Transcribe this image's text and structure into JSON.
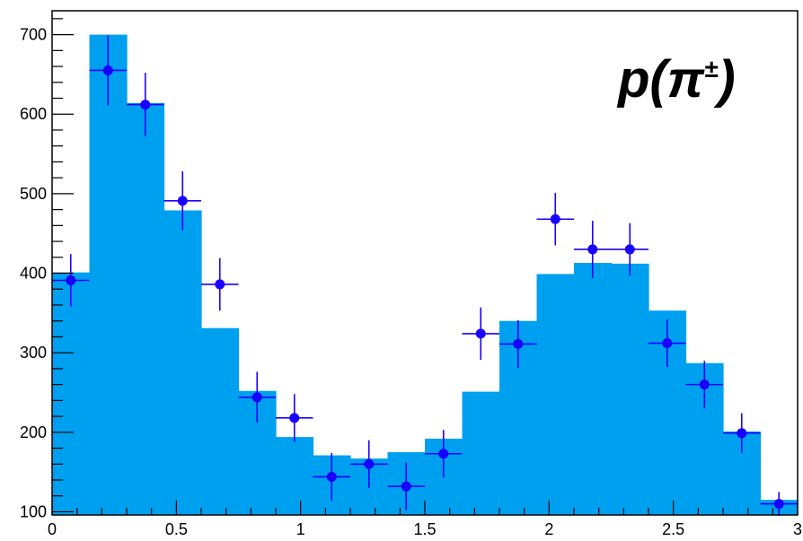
{
  "chart_data": {
    "type": "bar",
    "title": "",
    "xlabel": "",
    "ylabel": "",
    "annotation": "p(π±)",
    "annotation_parts": {
      "base": "p(π",
      "sup": "±",
      "close": ")"
    },
    "xlim": [
      0,
      3.0
    ],
    "ylim": [
      96,
      730
    ],
    "x_ticks": [
      0,
      0.5,
      1,
      1.5,
      2,
      2.5,
      3
    ],
    "x_tick_labels": [
      "0",
      "0.5",
      "1",
      "1.5",
      "2",
      "2.5",
      "3"
    ],
    "y_ticks": [
      100,
      200,
      300,
      400,
      500,
      600,
      700
    ],
    "y_tick_labels": [
      "100",
      "200",
      "300",
      "400",
      "500",
      "600",
      "700"
    ],
    "bin_edges": [
      0,
      0.15,
      0.3,
      0.45,
      0.6,
      0.75,
      0.9,
      1.05,
      1.2,
      1.35,
      1.5,
      1.65,
      1.8,
      1.95,
      2.1,
      2.25,
      2.4,
      2.55,
      2.7,
      2.85,
      3.0
    ],
    "series": [
      {
        "kind": "histogram",
        "color": "#00a0f0",
        "values": [
          401,
          700,
          614,
          479,
          331,
          252,
          194,
          171,
          167,
          175,
          192,
          251,
          340,
          399,
          413,
          412,
          353,
          287,
          201,
          115
        ]
      },
      {
        "kind": "points_with_errors",
        "color": "#1a00ff",
        "x": [
          0.075,
          0.225,
          0.375,
          0.525,
          0.675,
          0.825,
          0.975,
          1.125,
          1.275,
          1.425,
          1.575,
          1.725,
          1.875,
          2.025,
          2.175,
          2.325,
          2.475,
          2.625,
          2.775,
          2.925
        ],
        "y": [
          391,
          655,
          612,
          491,
          386,
          244,
          218,
          144,
          160,
          132,
          173,
          324,
          311,
          468,
          430,
          430,
          312,
          260,
          199,
          110
        ],
        "yerr": [
          33,
          44,
          40,
          37,
          33,
          32,
          30,
          30,
          30,
          30,
          30,
          33,
          30,
          33,
          36,
          33,
          30,
          30,
          25,
          15
        ]
      }
    ],
    "grid": false,
    "legend": "none"
  }
}
